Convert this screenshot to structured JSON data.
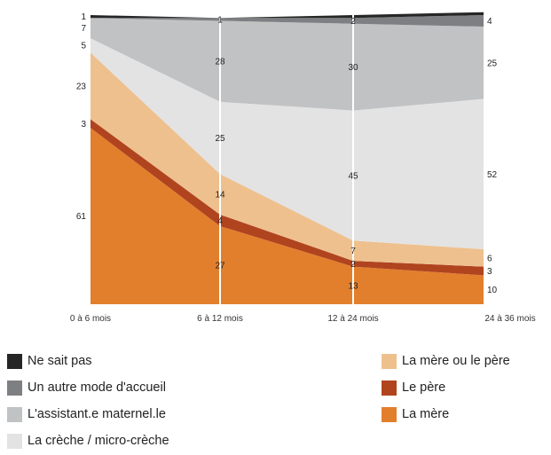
{
  "chart_data": {
    "type": "area",
    "stacked": true,
    "categories": [
      "0 à 6 mois",
      "6 à 12 mois",
      "12 à 24 mois",
      "24 à 36 mois"
    ],
    "ylim": [
      0,
      100
    ],
    "series": [
      {
        "name": "La mère",
        "color": "#e27f2d",
        "values": [
          61,
          27,
          13,
          10
        ],
        "labels": [
          "61",
          "27",
          "13",
          "10"
        ]
      },
      {
        "name": "Le père",
        "color": "#b0441f",
        "values": [
          3,
          4,
          2,
          3
        ],
        "labels": [
          "3",
          "4",
          "2",
          "3"
        ]
      },
      {
        "name": "La mère ou le père",
        "color": "#eec08e",
        "values": [
          23,
          14,
          7,
          6
        ],
        "labels": [
          "23",
          "14",
          "7",
          "6"
        ]
      },
      {
        "name": "La crèche / micro-crèche",
        "color": "#e3e3e3",
        "values": [
          5,
          25,
          45,
          52
        ],
        "labels": [
          "5",
          "25",
          "45",
          "52"
        ]
      },
      {
        "name": "L'assistant.e maternel.le",
        "color": "#c1c2c4",
        "values": [
          7,
          28,
          30,
          25
        ],
        "labels": [
          "7",
          "28",
          "30",
          "25"
        ]
      },
      {
        "name": "Un autre mode d'accueil",
        "color": "#7e7f82",
        "values": [
          0,
          1,
          2,
          4
        ],
        "labels": [
          "",
          "1",
          "2",
          "4"
        ]
      },
      {
        "name": "Ne sait pas",
        "color": "#262626",
        "values": [
          1,
          0,
          1,
          1
        ],
        "labels": [
          "1",
          "",
          "",
          ""
        ]
      }
    ],
    "grid": "vertical lines at inner categories",
    "legend": "bottom, two columns"
  },
  "legend": {
    "left": [
      {
        "label": "Ne sait pas",
        "color": "#262626"
      },
      {
        "label": "Un autre mode d'accueil",
        "color": "#7e7f82"
      },
      {
        "label": "L'assistant.e maternel.le",
        "color": "#c1c2c4"
      },
      {
        "label": "La crèche / micro-crèche",
        "color": "#e3e3e3"
      }
    ],
    "right": [
      {
        "label": "La mère ou le père",
        "color": "#eec08e"
      },
      {
        "label": "Le père",
        "color": "#b0441f"
      },
      {
        "label": "La mère",
        "color": "#e27f2d"
      }
    ]
  }
}
